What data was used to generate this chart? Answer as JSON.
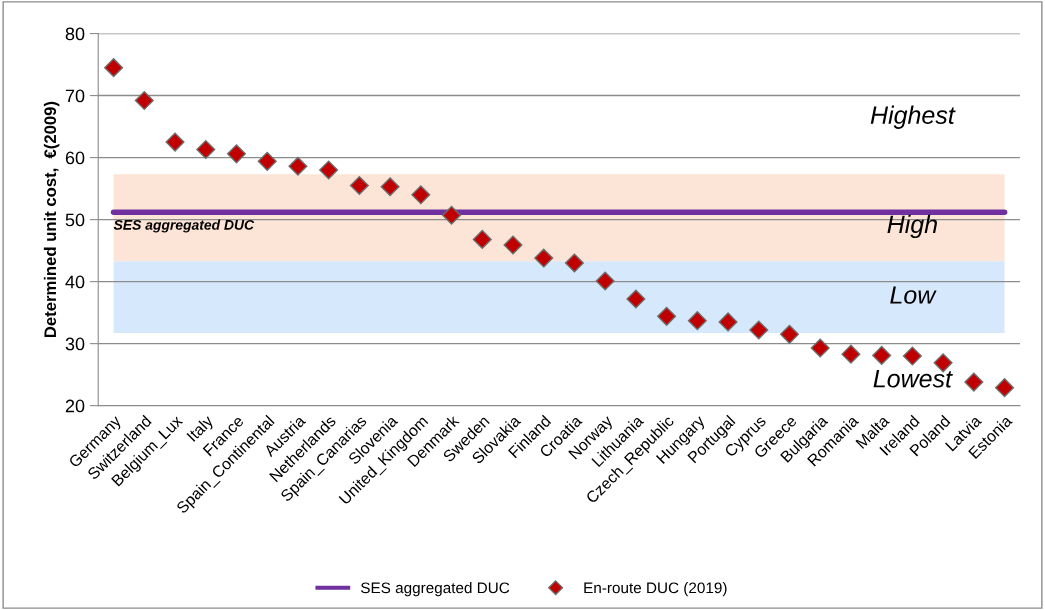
{
  "chart_data": {
    "type": "scatter",
    "ylabel": "Determined unit cost,  €(2009)",
    "categories": [
      "Germany",
      "Switzerland",
      "Belgium_Lux",
      "Italy",
      "France",
      "Spain_Continental",
      "Austria",
      "Netherlands",
      "Spain_Canarias",
      "Slovenia",
      "United_Kingdom",
      "Denmark",
      "Sweden",
      "Slovakia",
      "Finland",
      "Croatia",
      "Norway",
      "Lithuania",
      "Czech_Republic",
      "Hungary",
      "Portugal",
      "Cyprus",
      "Greece",
      "Bulgaria",
      "Romania",
      "Malta",
      "Ireland",
      "Poland",
      "Latvia",
      "Estonia"
    ],
    "series": [
      {
        "name": "En-route DUC (2019)",
        "color": "#c00000",
        "values": [
          74.5,
          69.2,
          62.5,
          61.3,
          60.6,
          59.4,
          58.6,
          58.0,
          55.5,
          55.3,
          54.0,
          50.7,
          46.8,
          45.9,
          43.8,
          43.0,
          40.1,
          37.2,
          34.4,
          33.7,
          33.5,
          32.2,
          31.5,
          29.3,
          28.3,
          28.1,
          28.0,
          26.9,
          23.8,
          22.9
        ]
      }
    ],
    "ref_lines": [
      {
        "axis": "y",
        "value": 51.2,
        "label": "SES aggregated DUC",
        "color": "#7030a0"
      }
    ],
    "bands": [
      {
        "axis": "y",
        "from": 43.3,
        "to": 57.3,
        "label": "High",
        "color": "#fce4d6"
      },
      {
        "axis": "y",
        "from": 31.7,
        "to": 43.3,
        "label": "Low",
        "color": "#d6e8fc"
      }
    ],
    "annotations": [
      "Highest",
      "Lowest"
    ],
    "ylim": [
      20,
      80
    ],
    "yticks": [
      20,
      30,
      40,
      50,
      60,
      70,
      80
    ],
    "grid": "y",
    "legend": "bottom",
    "marker": "diamond"
  }
}
